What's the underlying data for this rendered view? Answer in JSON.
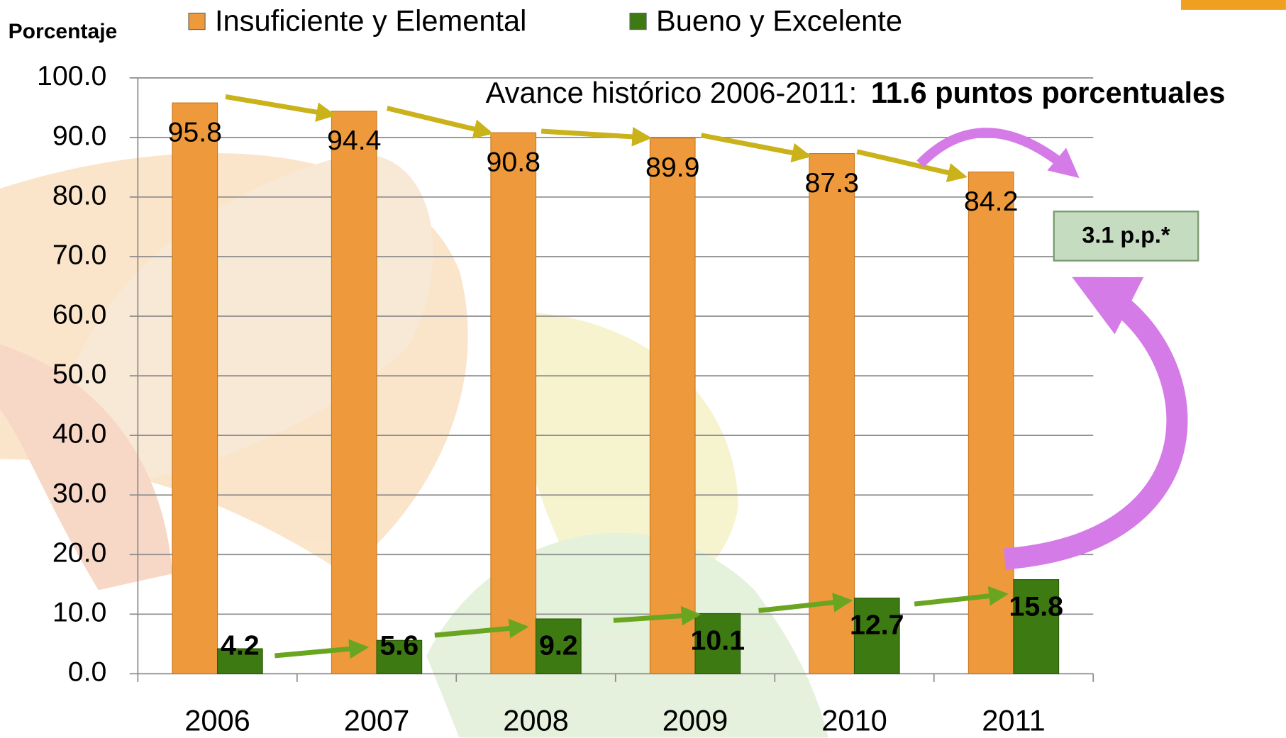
{
  "chart_data": {
    "type": "bar",
    "ylabel": "Porcentaje",
    "categories": [
      "2006",
      "2007",
      "2008",
      "2009",
      "2010",
      "2011"
    ],
    "series": [
      {
        "name": "Insuficiente y Elemental",
        "color": "#ee9a3c",
        "values": [
          95.8,
          94.4,
          90.8,
          89.9,
          87.3,
          84.2
        ]
      },
      {
        "name": "Bueno y Excelente",
        "color": "#3d7a12",
        "values": [
          4.2,
          5.6,
          9.2,
          10.1,
          12.7,
          15.8
        ]
      }
    ],
    "ylim": [
      0,
      100
    ],
    "yticks": [
      {
        "value": 0,
        "label": "0.0"
      },
      {
        "value": 10,
        "label": "10.0"
      },
      {
        "value": 20,
        "label": "20.0"
      },
      {
        "value": 30,
        "label": "30.0"
      },
      {
        "value": 40,
        "label": "40.0"
      },
      {
        "value": 50,
        "label": "50.0"
      },
      {
        "value": 60,
        "label": "60.0"
      },
      {
        "value": 70,
        "label": "70.0"
      },
      {
        "value": 80,
        "label": "80.0"
      },
      {
        "value": 90,
        "label": "90.0"
      },
      {
        "value": 100,
        "label": "100.0"
      }
    ],
    "grid": true,
    "annotations": {
      "history": "Avance histórico 2006-2011:",
      "history_emphasis": "11.6 puntos porcentuales",
      "gap": "3.1 p.p.*"
    }
  }
}
